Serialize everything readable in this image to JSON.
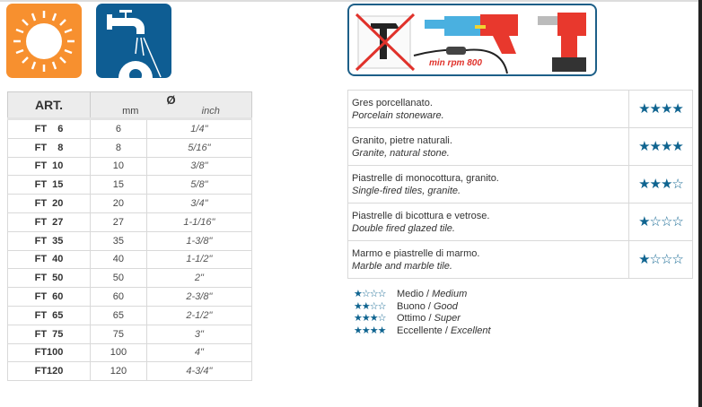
{
  "icons": [
    "sun-icon",
    "water-tap-icon"
  ],
  "tools": {
    "rpm_label": "min rpm 800"
  },
  "art_table": {
    "header": {
      "art": "ART.",
      "diameter": "Ø",
      "mm": "mm",
      "inch": "inch"
    },
    "rows": [
      {
        "art": "FT    6",
        "mm": "6",
        "inch": "1/4\""
      },
      {
        "art": "FT    8",
        "mm": "8",
        "inch": "5/16\""
      },
      {
        "art": "FT  10",
        "mm": "10",
        "inch": "3/8\""
      },
      {
        "art": "FT  15",
        "mm": "15",
        "inch": "5/8\""
      },
      {
        "art": "FT  20",
        "mm": "20",
        "inch": "3/4\""
      },
      {
        "art": "FT  27",
        "mm": "27",
        "inch": "1-1/16\""
      },
      {
        "art": "FT  35",
        "mm": "35",
        "inch": "1-3/8\""
      },
      {
        "art": "FT  40",
        "mm": "40",
        "inch": "1-1/2\""
      },
      {
        "art": "FT  50",
        "mm": "50",
        "inch": "2\""
      },
      {
        "art": "FT  60",
        "mm": "60",
        "inch": "2-3/8\""
      },
      {
        "art": "FT  65",
        "mm": "65",
        "inch": "2-1/2\""
      },
      {
        "art": "FT  75",
        "mm": "75",
        "inch": "3\""
      },
      {
        "art": "FT100",
        "mm": "100",
        "inch": "4\""
      },
      {
        "art": "FT120",
        "mm": "120",
        "inch": "4-3/4\""
      }
    ]
  },
  "materials": [
    {
      "it": "Gres porcellanato.",
      "en": "Porcelain stoneware.",
      "stars": 4
    },
    {
      "it": "Granito, pietre naturali.",
      "en": "Granite, natural stone.",
      "stars": 4
    },
    {
      "it": "Piastrelle di monocottura, granito.",
      "en": "Single-fired tiles, granite.",
      "stars": 3
    },
    {
      "it": "Piastrelle di bicottura e vetrose.",
      "en": "Double fired glazed tile.",
      "stars": 1
    },
    {
      "it": "Marmo e piastrelle di marmo.",
      "en": "Marble and marble tile.",
      "stars": 1
    }
  ],
  "legend": [
    {
      "stars": 1,
      "it": "Medio",
      "en": "Medium"
    },
    {
      "stars": 2,
      "it": "Buono",
      "en": "Good"
    },
    {
      "stars": 3,
      "it": "Ottimo",
      "en": "Super"
    },
    {
      "stars": 4,
      "it": "Eccellente",
      "en": "Excellent"
    }
  ],
  "colors": {
    "star": "#0f6490",
    "sun_bg": "#f7902f",
    "water_bg": "#0e5d93",
    "rpm": "#e0322b"
  }
}
